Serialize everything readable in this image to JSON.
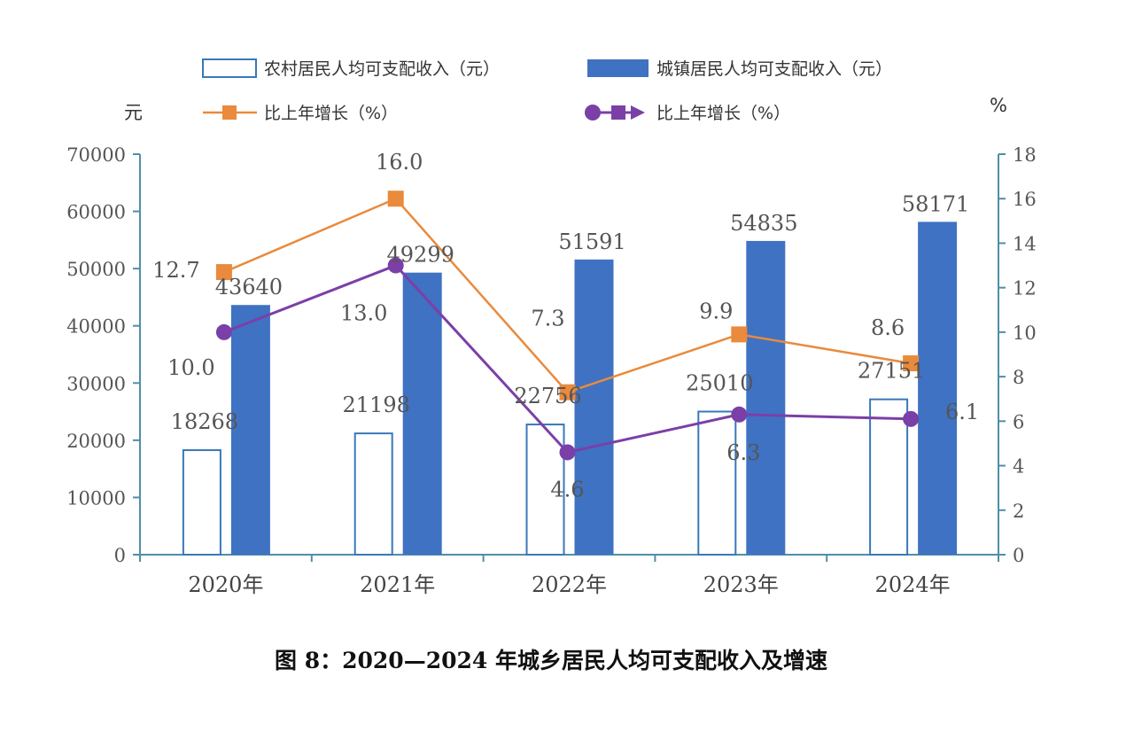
{
  "chart_data": {
    "type": "bar",
    "caption": "图 8：2020—2024 年城乡居民人均可支配收入及增速",
    "categories": [
      "2020年",
      "2021年",
      "2022年",
      "2023年",
      "2024年"
    ],
    "y_left": {
      "unit_label": "元",
      "ylim": [
        0,
        70000
      ],
      "ticks": [
        0,
        10000,
        20000,
        30000,
        40000,
        50000,
        60000,
        70000
      ]
    },
    "y_right": {
      "unit_label": "%",
      "ylim": [
        0,
        18
      ],
      "ticks": [
        0,
        2,
        4,
        6,
        8,
        10,
        12,
        14,
        16,
        18
      ]
    },
    "series": [
      {
        "name": "农村居民人均可支配收入（元）",
        "kind": "bar",
        "axis": "left",
        "style": "outline",
        "values": [
          18268,
          21198,
          22756,
          25010,
          27151
        ],
        "labels": [
          "18268",
          "21198",
          "22756",
          "25010",
          "27151"
        ]
      },
      {
        "name": "城镇居民人均可支配收入（元）",
        "kind": "bar",
        "axis": "left",
        "style": "filled",
        "values": [
          43640,
          49299,
          51591,
          54835,
          58171
        ],
        "labels": [
          "43640",
          "49299",
          "51591",
          "54835",
          "58171"
        ]
      },
      {
        "name": "比上年增长（%）",
        "kind": "line",
        "axis": "right",
        "marker": "square",
        "values": [
          12.7,
          16.0,
          7.3,
          9.9,
          8.6
        ],
        "labels": [
          "12.7",
          "16.0",
          "7.3",
          "9.9",
          "8.6"
        ]
      },
      {
        "name": "比上年增长（%）",
        "kind": "line",
        "axis": "right",
        "marker": "circle",
        "values": [
          10.0,
          13.0,
          4.6,
          6.3,
          6.1
        ],
        "labels": [
          "10.0",
          "13.0",
          "4.6",
          "6.3",
          "6.1"
        ]
      }
    ],
    "colors": {
      "rural_bar_stroke": "#3a78b8",
      "urban_bar_fill": "#3f72c2",
      "rural_line": "#e98a3c",
      "urban_line": "#7b3fa8",
      "axis": "#4f8fa8"
    },
    "legend_placement": "top",
    "grid": false
  }
}
